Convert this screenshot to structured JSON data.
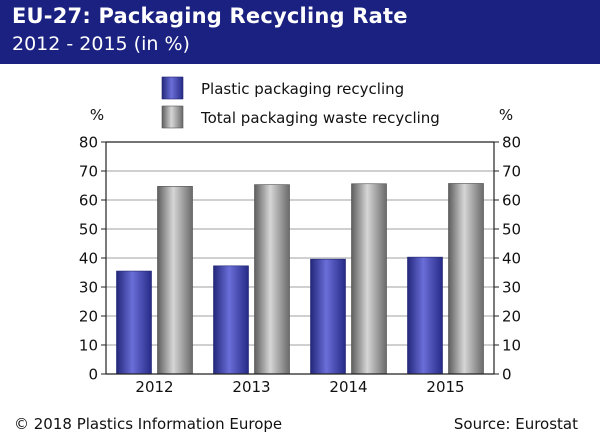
{
  "header": {
    "title": "EU-27: Packaging Recycling Rate",
    "subtitle": "2012 - 2015 (in %)"
  },
  "footer": {
    "copyright": "© 2018 Plastics Information Europe",
    "source": "Source: Eurostat"
  },
  "colors": {
    "header_bg": "#1a2180",
    "plastic_series": "#3b3fb0",
    "total_series": "#8c8c8c"
  },
  "chart_data": {
    "type": "bar",
    "categories": [
      "2012",
      "2013",
      "2014",
      "2015"
    ],
    "series": [
      {
        "name": "Plastic packaging recycling",
        "values": [
          35.5,
          37.3,
          39.6,
          40.3
        ]
      },
      {
        "name": "Total packaging waste recycling",
        "values": [
          64.7,
          65.3,
          65.6,
          65.7
        ]
      }
    ],
    "ylabel_left": "%",
    "ylabel_right": "%",
    "ylim": [
      0,
      80
    ],
    "yticks": [
      0,
      10,
      20,
      30,
      40,
      50,
      60,
      70,
      80
    ],
    "grid": true,
    "legend": "top"
  }
}
